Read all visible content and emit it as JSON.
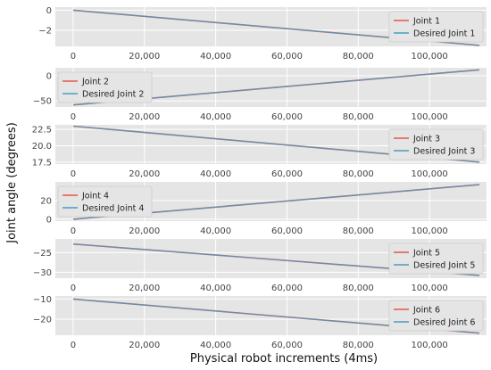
{
  "chart_data": {
    "type": "line",
    "xlabel": "Physical robot increments (4ms)",
    "ylabel": "Joint angle (degrees)",
    "xlim": [
      -5000,
      116000
    ],
    "x_ticks": [
      0,
      20000,
      40000,
      60000,
      80000,
      100000
    ],
    "x_tick_labels": [
      "0",
      "20,000",
      "40,000",
      "60,000",
      "80,000",
      "100,000"
    ],
    "grid": true,
    "legend_placement": "right",
    "colors": {
      "actual": "#e8554e",
      "desired": "#4a9bc0",
      "panel_bg": "#e5e5e5",
      "grid": "#ffffff"
    },
    "panels": [
      {
        "ylim": [
          -3.6,
          0.3
        ],
        "y_ticks": [
          -2,
          0
        ],
        "y_tick_labels": [
          "−2",
          "0"
        ],
        "series": [
          {
            "name": "Joint 1",
            "x": [
              0,
              114000
            ],
            "values": [
              0.0,
              -3.5
            ]
          },
          {
            "name": "Desired Joint 1",
            "x": [
              0,
              114000
            ],
            "values": [
              0.0,
              -3.5
            ]
          }
        ]
      },
      {
        "ylim": [
          -62,
          16
        ],
        "y_ticks": [
          -50,
          0
        ],
        "y_tick_labels": [
          "−50",
          "0"
        ],
        "series": [
          {
            "name": "Joint 2",
            "x": [
              0,
              114000
            ],
            "values": [
              -58,
              12
            ]
          },
          {
            "name": "Desired Joint 2",
            "x": [
              0,
              114000
            ],
            "values": [
              -58,
              12
            ]
          }
        ]
      },
      {
        "ylim": [
          17.2,
          23.2
        ],
        "y_ticks": [
          17.5,
          20.0,
          22.5
        ],
        "y_tick_labels": [
          "17.5",
          "20.0",
          "22.5"
        ],
        "series": [
          {
            "name": "Joint 3",
            "x": [
              0,
              114000
            ],
            "values": [
              23.0,
              17.5
            ]
          },
          {
            "name": "Desired Joint 3",
            "x": [
              0,
              114000
            ],
            "values": [
              23.0,
              17.5
            ]
          }
        ]
      },
      {
        "ylim": [
          -2,
          40
        ],
        "y_ticks": [
          0,
          20
        ],
        "y_tick_labels": [
          "0",
          "20"
        ],
        "series": [
          {
            "name": "Joint 4",
            "x": [
              0,
              114000
            ],
            "values": [
              0,
              37
            ]
          },
          {
            "name": "Desired Joint 4",
            "x": [
              0,
              114000
            ],
            "values": [
              0,
              37
            ]
          }
        ]
      },
      {
        "ylim": [
          -31.5,
          -21.5
        ],
        "y_ticks": [
          -30,
          -25
        ],
        "y_tick_labels": [
          "−30",
          "−25"
        ],
        "series": [
          {
            "name": "Joint 5",
            "x": [
              0,
              114000
            ],
            "values": [
              -22.8,
              -30.8
            ]
          },
          {
            "name": "Desired Joint 5",
            "x": [
              0,
              114000
            ],
            "values": [
              -22.8,
              -30.8
            ]
          }
        ]
      },
      {
        "ylim": [
          -28,
          -8.5
        ],
        "y_ticks": [
          -20,
          -10
        ],
        "y_tick_labels": [
          "−20",
          "−10"
        ],
        "series": [
          {
            "name": "Joint 6",
            "x": [
              0,
              114000
            ],
            "values": [
              -10,
              -27
            ]
          },
          {
            "name": "Desired Joint 6",
            "x": [
              0,
              114000
            ],
            "values": [
              -10,
              -27
            ]
          }
        ]
      }
    ]
  }
}
